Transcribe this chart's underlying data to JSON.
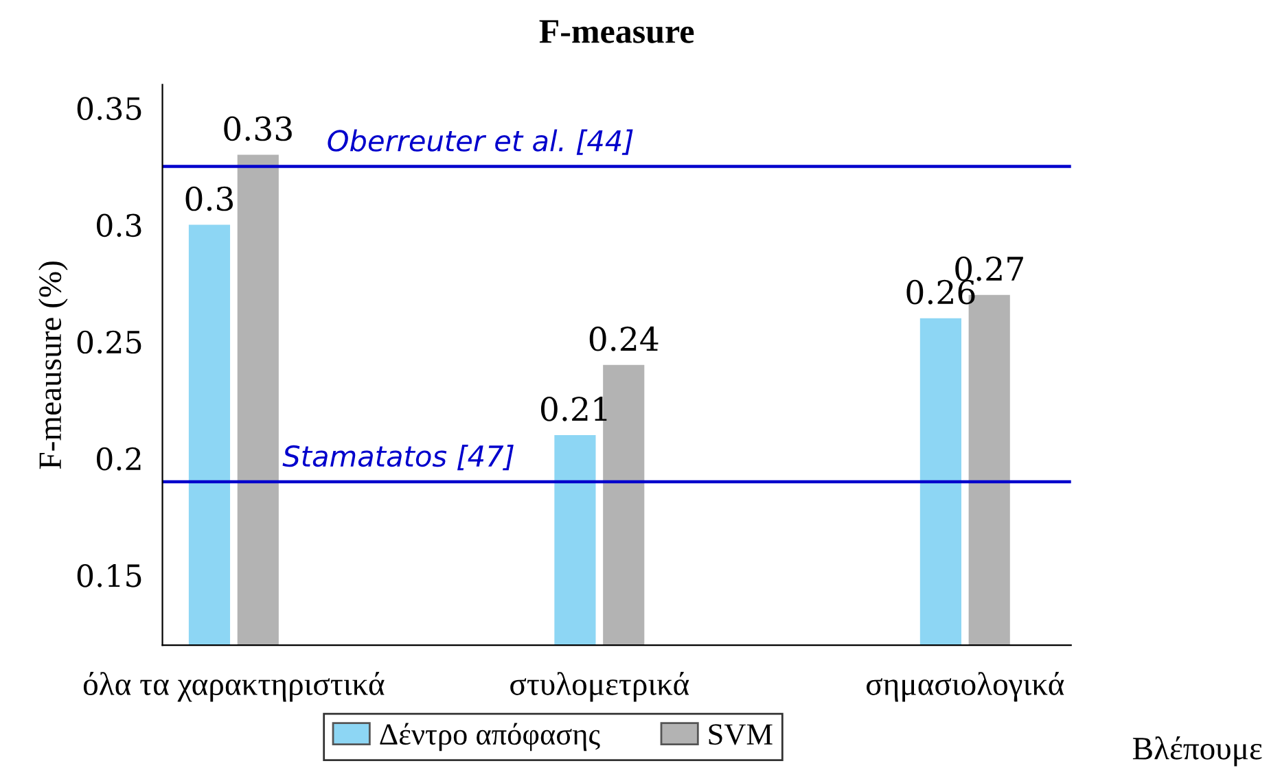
{
  "chart_data": {
    "type": "bar",
    "title": "F-measure",
    "ylabel": "F-meausure (%)",
    "categories": [
      "όλα τα χαρακτηριστικά",
      "στυλομετρικά",
      "σημασιολογικά"
    ],
    "series": [
      {
        "name": "Δέντρο απόφασης",
        "color": "#8dd6f4",
        "values": [
          0.3,
          0.21,
          0.26
        ]
      },
      {
        "name": "SVM",
        "color": "#b3b3b3",
        "values": [
          0.33,
          0.24,
          0.27
        ]
      }
    ],
    "ylim": [
      0.12,
      0.36
    ],
    "yticks": [
      0.15,
      0.2,
      0.25,
      0.3,
      0.35
    ],
    "data_labels": true,
    "legend": "bottom",
    "grid": false,
    "ref_lines": [
      {
        "axis": "y",
        "value": 0.325,
        "label": "Oberreuter et al. [44]",
        "color": "#0000cc"
      },
      {
        "axis": "y",
        "value": 0.19,
        "label": "Stamatatos [47]",
        "color": "#0000cc"
      }
    ],
    "annotations": [
      "Βλέπουμε"
    ]
  }
}
